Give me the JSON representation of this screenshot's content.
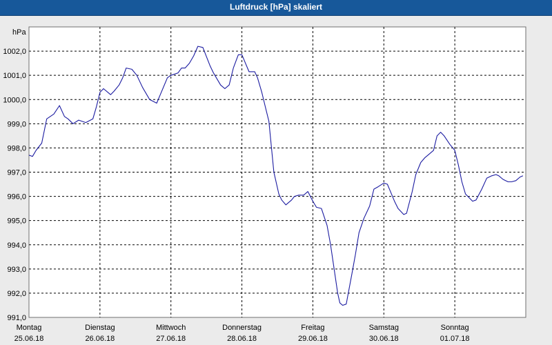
{
  "window": {
    "title": "Luftdruck [hPa] skaliert"
  },
  "chart_data": {
    "type": "line",
    "title": "Luftdruck [hPa] skaliert",
    "ylabel": "hPa",
    "xlabel": "",
    "ylim": [
      991.0,
      1003.0
    ],
    "xlim": [
      0,
      7
    ],
    "grid": true,
    "y_ticks": [
      "991,0",
      "992,0",
      "993,0",
      "994,0",
      "995,0",
      "996,0",
      "997,0",
      "998,0",
      "999,0",
      "1000,0",
      "1001,0",
      "1002,0"
    ],
    "x_ticks": [
      {
        "day": "Montag",
        "date": "25.06.18"
      },
      {
        "day": "Dienstag",
        "date": "26.06.18"
      },
      {
        "day": "Mittwoch",
        "date": "27.06.18"
      },
      {
        "day": "Donnerstag",
        "date": "28.06.18"
      },
      {
        "day": "Freitag",
        "date": "29.06.18"
      },
      {
        "day": "Samstag",
        "date": "30.06.18"
      },
      {
        "day": "Sonntag",
        "date": "01.07.18"
      }
    ],
    "line_color": "#1a1aa0",
    "series": [
      {
        "x": [
          0.0,
          0.05,
          0.1,
          0.18,
          0.25,
          0.35,
          0.43,
          0.5,
          0.55,
          0.62,
          0.7,
          0.8,
          0.9,
          0.95,
          1.0,
          1.05,
          1.15,
          1.2,
          1.27,
          1.32,
          1.37,
          1.45,
          1.52,
          1.6,
          1.7,
          1.8,
          1.85,
          1.95,
          2.0,
          2.1,
          2.15,
          2.2,
          2.26,
          2.32,
          2.38,
          2.45,
          2.55,
          2.6,
          2.7,
          2.76,
          2.82,
          2.88,
          2.95,
          3.0,
          3.05,
          3.1,
          3.18,
          3.22,
          3.28,
          3.33,
          3.38,
          3.45,
          3.52,
          3.56,
          3.62,
          3.7,
          3.74,
          3.8,
          3.87,
          3.93,
          4.0,
          4.05,
          4.12,
          4.2,
          4.25,
          4.35,
          4.38,
          4.42,
          4.47,
          4.55,
          4.6,
          4.65,
          4.72,
          4.8,
          4.86,
          4.92,
          5.0,
          5.05,
          5.1,
          5.15,
          5.2,
          5.28,
          5.32,
          5.4,
          5.45,
          5.52,
          5.58,
          5.62,
          5.7,
          5.75,
          5.8,
          5.85,
          5.93,
          6.0,
          6.05,
          6.1,
          6.15,
          6.25,
          6.3,
          6.38,
          6.45,
          6.52,
          6.58,
          6.62,
          6.68,
          6.75,
          6.8,
          6.86,
          6.92,
          6.96
        ],
        "values": [
          997.7,
          997.65,
          997.9,
          998.2,
          999.2,
          999.4,
          999.75,
          999.3,
          999.2,
          999.0,
          999.15,
          999.05,
          999.2,
          999.7,
          1000.3,
          1000.45,
          1000.2,
          1000.35,
          1000.6,
          1000.9,
          1001.3,
          1001.25,
          1001.0,
          1000.5,
          1000.0,
          999.85,
          1000.2,
          1000.9,
          1001.0,
          1001.1,
          1001.3,
          1001.3,
          1001.5,
          1001.8,
          1002.2,
          1002.15,
          1001.4,
          1001.1,
          1000.6,
          1000.45,
          1000.6,
          1001.3,
          1001.85,
          1001.85,
          1001.5,
          1001.15,
          1001.15,
          1000.9,
          1000.3,
          999.7,
          999.1,
          997.0,
          996.1,
          995.85,
          995.65,
          995.85,
          996.0,
          996.05,
          996.05,
          996.2,
          995.8,
          995.55,
          995.5,
          994.8,
          994.0,
          992.0,
          991.6,
          991.5,
          991.55,
          992.8,
          993.6,
          994.5,
          995.1,
          995.6,
          996.3,
          996.4,
          996.55,
          996.5,
          996.15,
          995.8,
          995.5,
          995.25,
          995.3,
          996.2,
          996.9,
          997.4,
          997.6,
          997.7,
          997.9,
          998.5,
          998.65,
          998.5,
          998.15,
          997.9,
          997.3,
          996.6,
          996.1,
          995.8,
          995.85,
          996.3,
          996.75,
          996.85,
          996.9,
          996.85,
          996.7,
          996.6,
          996.6,
          996.65,
          996.8,
          996.85
        ]
      }
    ]
  }
}
